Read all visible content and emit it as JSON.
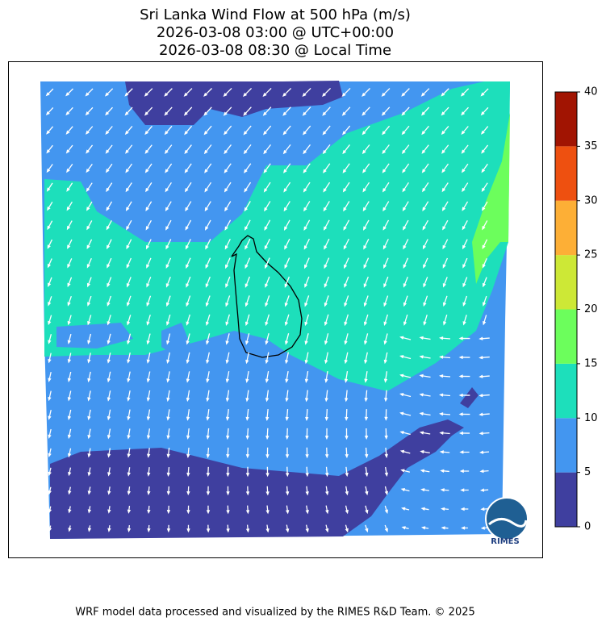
{
  "map": {
    "title": [
      "Sri Lanka Wind Flow at 500 hPa (m/s)",
      "2026-03-08 03:00 @ UTC+00:00",
      "2026-03-08 08:30 @ Local Time"
    ],
    "colorbar": {
      "ticks": [
        0,
        5,
        10,
        15,
        20,
        25,
        30,
        35,
        40
      ],
      "colors": [
        "#3f3f9f",
        "#4396f0",
        "#1ddfbb",
        "#6cfe5c",
        "#cde836",
        "#fdaf36",
        "#ee5010",
        "#a11402"
      ]
    },
    "logo": "RIMES",
    "footer": "WRF model data processed and visualized by the RIMES R&D Team. © 2025"
  }
}
